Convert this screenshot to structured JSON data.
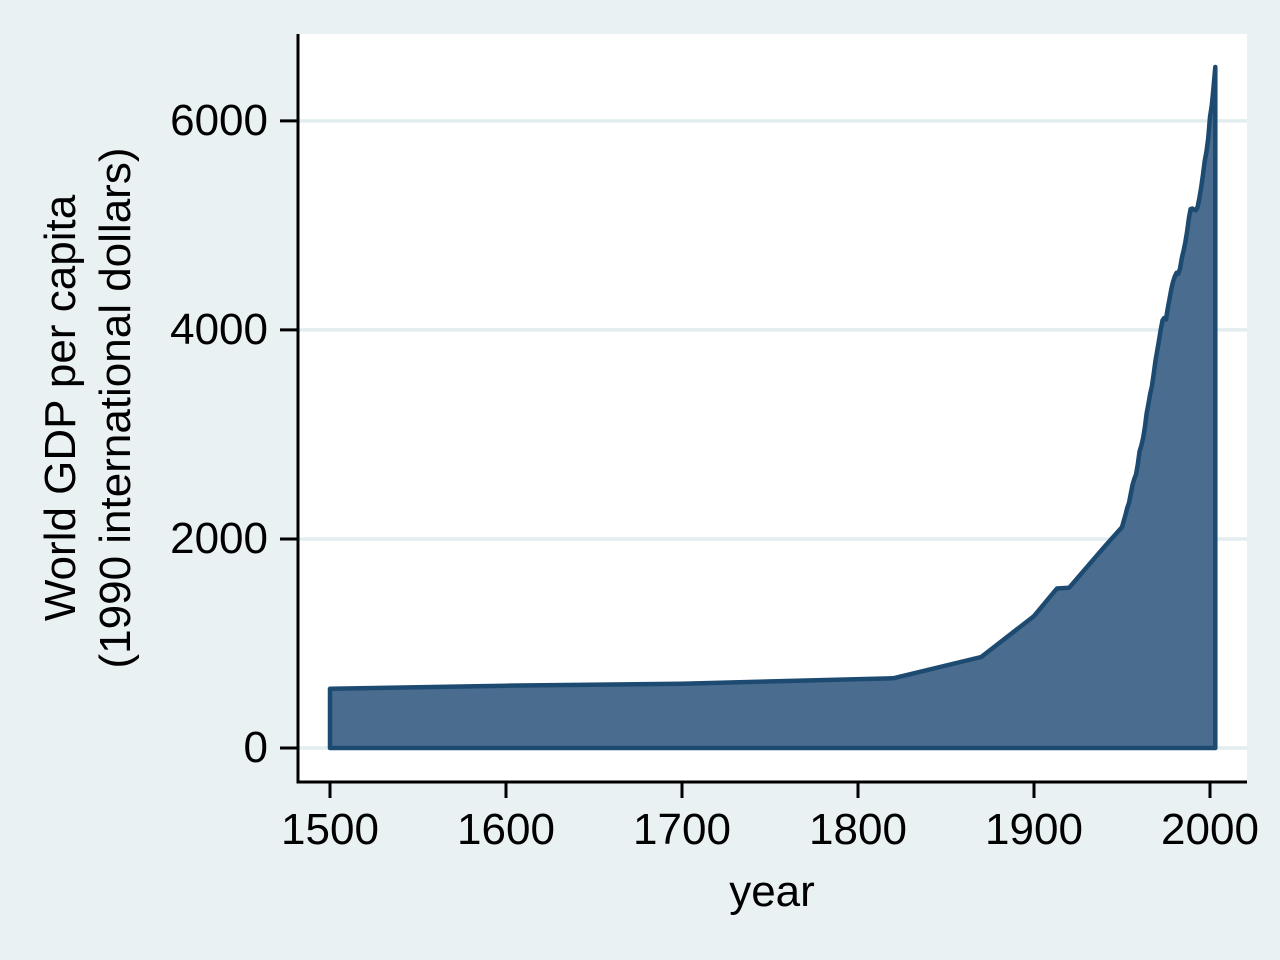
{
  "chart_data": {
    "type": "area",
    "title": "",
    "xlabel": "year",
    "ylabel_line1": "World GDP per capita",
    "ylabel_line2": "(1990 international dollars)",
    "legend": "none",
    "grid": true,
    "xlim": [
      1500,
      2003
    ],
    "ylim": [
      0,
      6800
    ],
    "x_ticks": [
      1500,
      1600,
      1700,
      1800,
      1900,
      2000
    ],
    "y_ticks": [
      0,
      2000,
      4000,
      6000
    ],
    "series": [
      {
        "name": "World GDP per capita (1990 international dollars)",
        "points": [
          [
            1500,
            566
          ],
          [
            1600,
            596
          ],
          [
            1700,
            615
          ],
          [
            1820,
            667
          ],
          [
            1870,
            871
          ],
          [
            1900,
            1262
          ],
          [
            1913,
            1526
          ],
          [
            1920,
            1534
          ],
          [
            1929,
            1710
          ],
          [
            1940,
            1925
          ],
          [
            1950,
            2114
          ],
          [
            1951,
            2175
          ],
          [
            1952,
            2230
          ],
          [
            1953,
            2300
          ],
          [
            1954,
            2345
          ],
          [
            1955,
            2435
          ],
          [
            1956,
            2520
          ],
          [
            1957,
            2575
          ],
          [
            1958,
            2620
          ],
          [
            1959,
            2715
          ],
          [
            1960,
            2840
          ],
          [
            1961,
            2895
          ],
          [
            1962,
            2965
          ],
          [
            1963,
            3070
          ],
          [
            1964,
            3200
          ],
          [
            1965,
            3290
          ],
          [
            1966,
            3390
          ],
          [
            1967,
            3460
          ],
          [
            1968,
            3580
          ],
          [
            1969,
            3700
          ],
          [
            1970,
            3800
          ],
          [
            1971,
            3900
          ],
          [
            1972,
            4000
          ],
          [
            1973,
            4091
          ],
          [
            1974,
            4115
          ],
          [
            1975,
            4100
          ],
          [
            1976,
            4210
          ],
          [
            1977,
            4295
          ],
          [
            1978,
            4390
          ],
          [
            1979,
            4460
          ],
          [
            1980,
            4511
          ],
          [
            1981,
            4548
          ],
          [
            1982,
            4537
          ],
          [
            1983,
            4590
          ],
          [
            1984,
            4686
          ],
          [
            1985,
            4759
          ],
          [
            1986,
            4843
          ],
          [
            1987,
            4942
          ],
          [
            1988,
            5069
          ],
          [
            1989,
            5157
          ],
          [
            1990,
            5162
          ],
          [
            1991,
            5148
          ],
          [
            1992,
            5146
          ],
          [
            1993,
            5180
          ],
          [
            1994,
            5263
          ],
          [
            1995,
            5366
          ],
          [
            1996,
            5486
          ],
          [
            1997,
            5616
          ],
          [
            1998,
            5709
          ],
          [
            1999,
            5833
          ],
          [
            2000,
            6038
          ],
          [
            2001,
            6148
          ],
          [
            2002,
            6320
          ],
          [
            2003,
            6516
          ]
        ]
      }
    ],
    "colors": {
      "background": "#eaf1f3",
      "plot_background": "#ffffff",
      "gridline": "#e2edef",
      "axis": "#000000",
      "text": "#000000",
      "area_fill": "#4a6c8e",
      "area_stroke": "#1d4a71"
    }
  }
}
